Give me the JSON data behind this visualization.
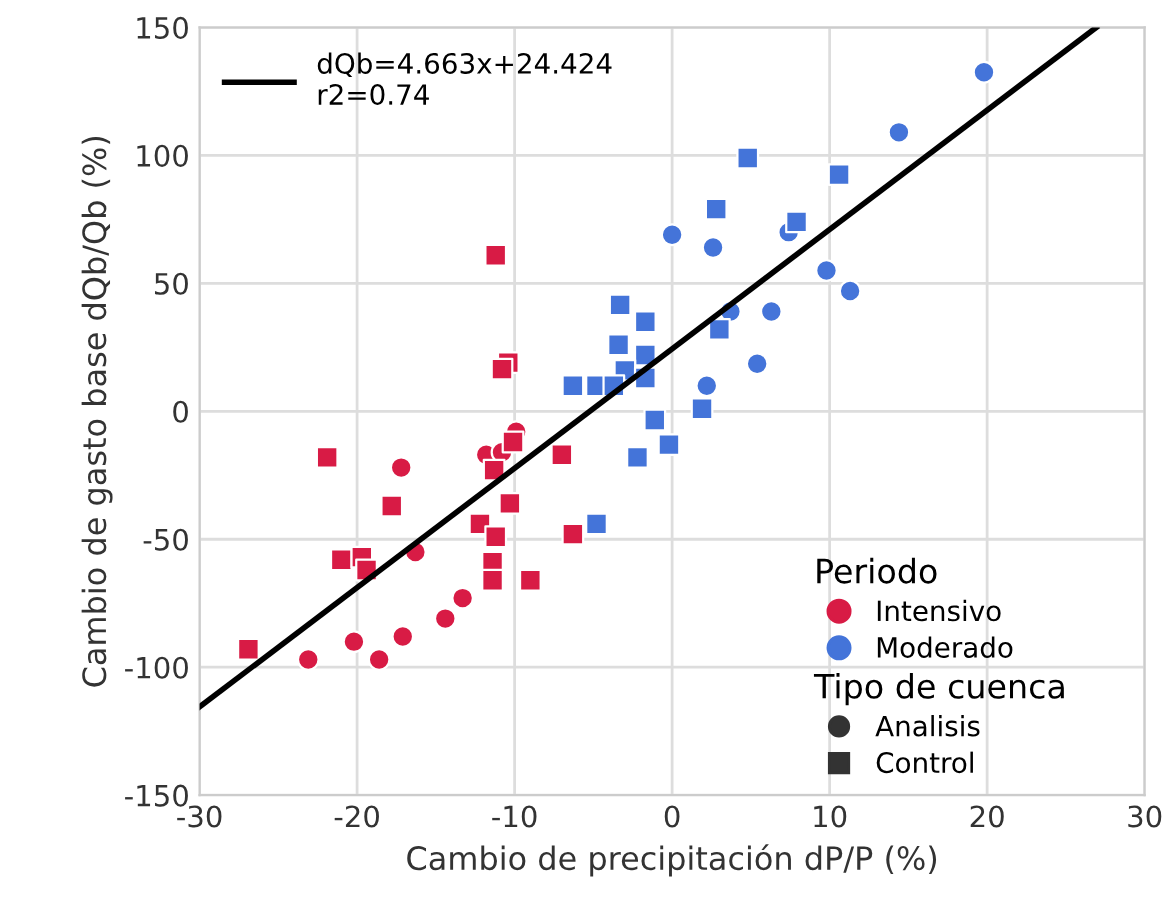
{
  "chart_data": {
    "type": "scatter",
    "xlabel": "Cambio de precipitación dP/P (%)",
    "ylabel": "Cambio de gasto base dQb/Qb (%)",
    "xlim": [
      -30,
      30
    ],
    "xticks": [
      -30,
      -20,
      -10,
      0,
      10,
      20,
      30
    ],
    "ylim": [
      -150,
      150
    ],
    "yticks": [
      -150,
      -100,
      -50,
      0,
      50,
      100,
      150
    ],
    "grid": true,
    "legend": "top left",
    "legend_title": "Periodo",
    "annotations": [
      "Tipo de cuenca",
      "Analisis",
      "Control"
    ],
    "series": [
      {
        "name": "Intensivo",
        "color": "#d81b45",
        "marker": "circle",
        "x": [
          -17.2,
          -16.3,
          -23.1,
          -20.2,
          -18.6,
          -17.1,
          -14.4,
          -13.3,
          -11.8,
          -10.8,
          -9.9
        ],
        "values": [
          -22,
          -55,
          -97,
          -90,
          -97,
          -88,
          -81,
          -73,
          -17,
          -16,
          -8
        ]
      },
      {
        "color": "#d81b45",
        "marker": "square",
        "x": [
          -11.2,
          -10.4,
          -10.8,
          -21.9,
          -17.8,
          -10.3,
          -10.1,
          -7.0,
          -12.2,
          -11.2,
          -6.3,
          -11.4,
          -11.4,
          -9.0,
          -21.0,
          -19.7,
          -19.4,
          -26.9,
          -11.3
        ],
        "values": [
          61,
          19,
          16.5,
          -18,
          -37,
          -36,
          -12,
          -17,
          -44,
          -49,
          -48,
          -59,
          -66,
          -66,
          -58,
          -57,
          -62,
          -93,
          -23
        ]
      },
      {
        "name": "Moderado",
        "color": "#4474d9",
        "marker": "circle",
        "x": [
          19.8,
          14.4,
          0.0,
          2.6,
          7.4,
          9.8,
          11.3,
          3.7,
          6.3,
          5.4,
          2.2
        ],
        "values": [
          132.5,
          109,
          69,
          64,
          70,
          55,
          47,
          39,
          39,
          18.6,
          10
        ]
      },
      {
        "color": "#4474d9",
        "marker": "square",
        "x": [
          4.8,
          10.6,
          2.8,
          7.9,
          -3.3,
          -1.7,
          -3.4,
          -1.7,
          -3.0,
          -1.7,
          3.0,
          -6.3,
          -4.8,
          -3.7,
          -1.1,
          1.9,
          -2.2,
          -0.2,
          -4.8
        ],
        "values": [
          99,
          92.5,
          79,
          74,
          41.6,
          35,
          26,
          22,
          16,
          13,
          32,
          10,
          10,
          10,
          -3.4,
          1,
          -18,
          -13,
          -44
        ]
      },
      {
        "name": "dQb=4.663x+24.424\nr2=0.74",
        "type": "line",
        "color": "#000000",
        "marker": "none",
        "x": [
          -30,
          26.93
        ],
        "values": [
          -115.5,
          150
        ]
      }
    ]
  }
}
